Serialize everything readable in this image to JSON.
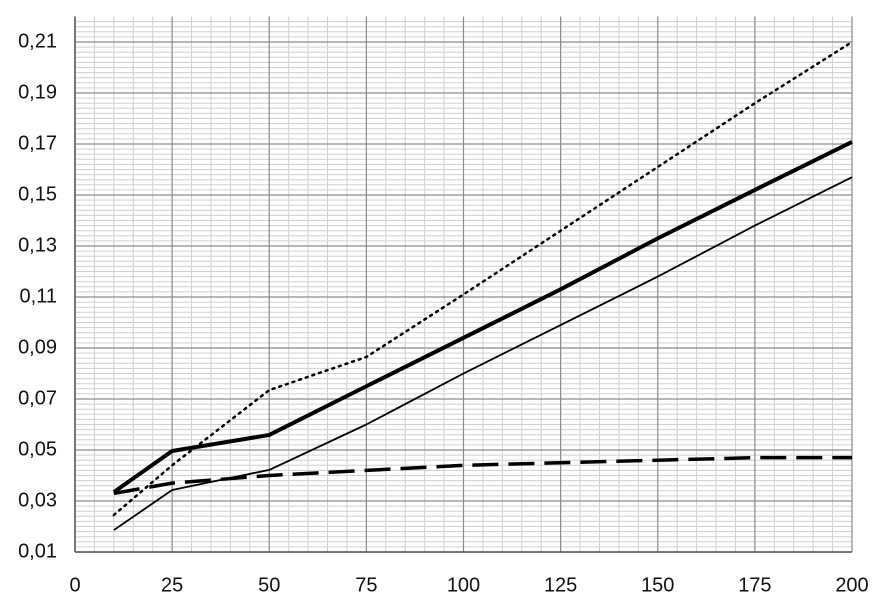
{
  "chart_data": {
    "type": "line",
    "x": [
      10,
      25,
      50,
      75,
      100,
      125,
      150,
      175,
      200
    ],
    "series": [
      {
        "color": "#000000",
        "dash": "dotted",
        "width": 2.5,
        "values": [
          0.0245,
          0.044,
          0.0735,
          0.0865,
          0.111,
          0.136,
          0.161,
          0.186,
          0.21
        ]
      },
      {
        "color": "#000000",
        "dash": "solid",
        "width": 4,
        "values": [
          0.0335,
          0.0496,
          0.0559,
          0.075,
          0.094,
          0.113,
          0.133,
          0.152,
          0.1708
        ]
      },
      {
        "color": "#000000",
        "dash": "solid",
        "width": 1.8,
        "values": [
          0.0186,
          0.0343,
          0.0422,
          0.06,
          0.08,
          0.099,
          0.118,
          0.138,
          0.157
        ]
      },
      {
        "color": "#000000",
        "dash": "dashed",
        "width": 3.5,
        "values": [
          0.033,
          0.037,
          0.04,
          0.042,
          0.044,
          0.045,
          0.046,
          0.047,
          0.047
        ]
      }
    ],
    "xlim": [
      0,
      200
    ],
    "xticks": [
      0,
      25,
      50,
      75,
      100,
      125,
      150,
      175,
      200
    ],
    "ylim": [
      0.01,
      0.22
    ],
    "yticks": [
      {
        "value": 0.01,
        "label": "0,01"
      },
      {
        "value": 0.03,
        "label": "0,03"
      },
      {
        "value": 0.05,
        "label": "0,05"
      },
      {
        "value": 0.07,
        "label": "0,07"
      },
      {
        "value": 0.09,
        "label": "0,09"
      },
      {
        "value": 0.11,
        "label": "0,11"
      },
      {
        "value": 0.13,
        "label": "0,13"
      },
      {
        "value": 0.15,
        "label": "0,15"
      },
      {
        "value": 0.17,
        "label": "0,17"
      },
      {
        "value": 0.19,
        "label": "0,19"
      },
      {
        "value": 0.21,
        "label": "0,21"
      }
    ],
    "grid": true,
    "minor_grid": true
  }
}
